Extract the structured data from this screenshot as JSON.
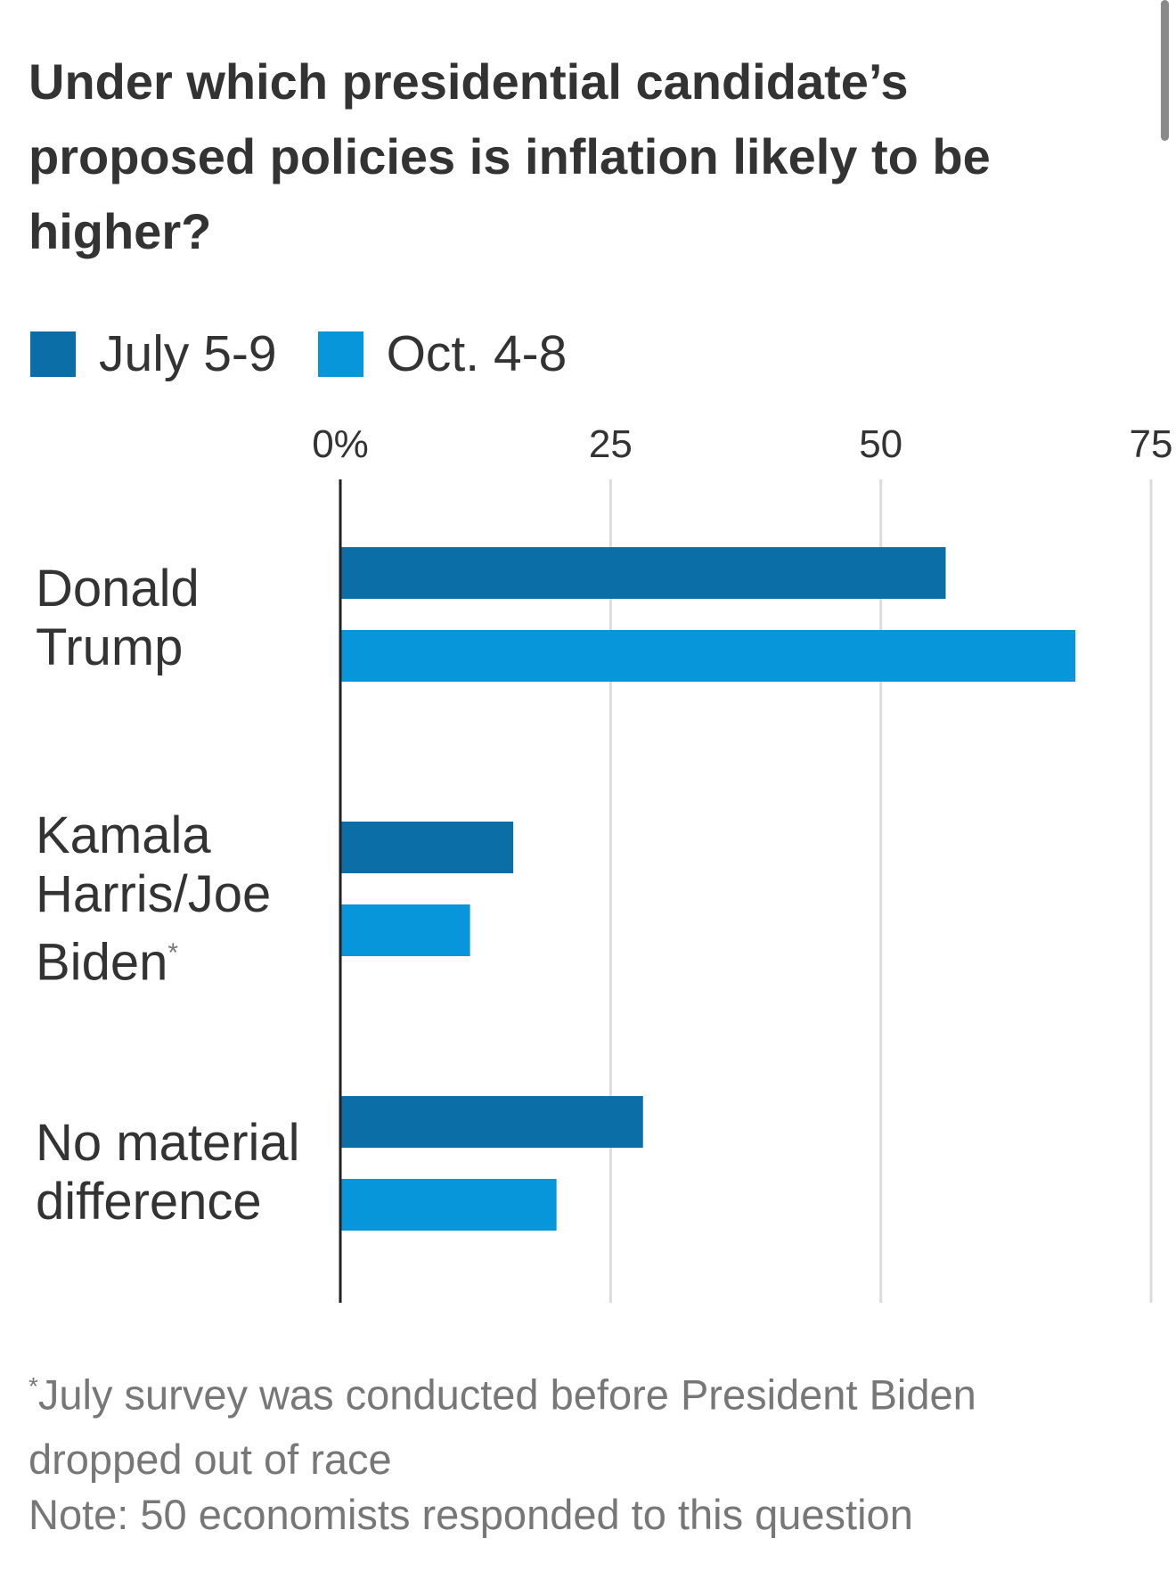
{
  "title": "Under which presidential candidate’s proposed policies is inflation likely to be higher?",
  "legend": [
    {
      "label": "July 5-9",
      "color": "#0b6ea6"
    },
    {
      "label": "Oct. 4-8",
      "color": "#0896da"
    }
  ],
  "chart_data": {
    "type": "bar",
    "orientation": "horizontal",
    "categories": [
      "Donald Trump",
      "Kamala Harris/Joe Biden*",
      "No material difference"
    ],
    "series": [
      {
        "name": "July 5-9",
        "values": [
          56,
          16,
          28
        ]
      },
      {
        "name": "Oct. 4-8",
        "values": [
          68,
          12,
          20
        ]
      }
    ],
    "x_ticks": [
      "0%",
      "25",
      "50",
      "75"
    ],
    "x_tick_values": [
      0,
      25,
      50,
      75
    ],
    "xlim": [
      0,
      75
    ],
    "grid": true,
    "legend_position": "top-left",
    "title": "Under which presidential candidate’s proposed policies is inflation likely to be higher?"
  },
  "category_labels": [
    [
      "Donald",
      "Trump"
    ],
    [
      "Kamala",
      "Harris/Joe",
      "Biden*"
    ],
    [
      "No material",
      "difference"
    ]
  ],
  "footnotes": {
    "asterisk": "*",
    "note1_line1": "July survey was conducted before President Biden",
    "note1_line2": "dropped out of race",
    "note2": "Note: 50 economists responded to this question"
  }
}
